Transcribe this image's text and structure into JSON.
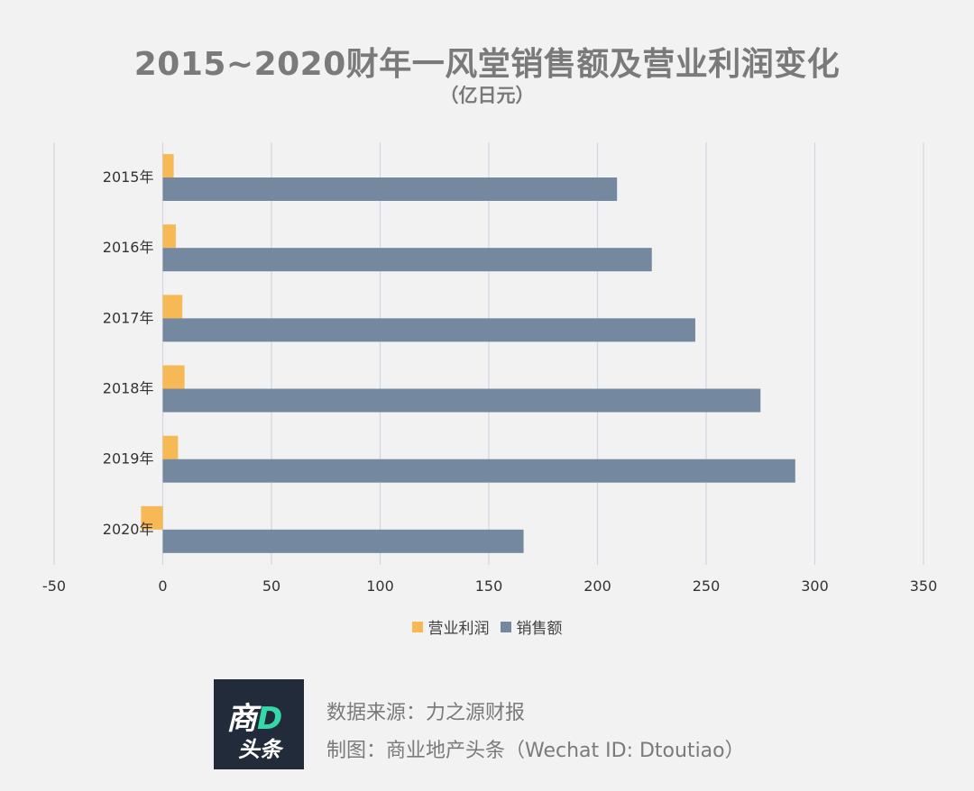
{
  "title": "2015~2020财年一风堂销售额及营业利润变化",
  "subtitle": "（亿日元）",
  "colors": {
    "profit": "#f7b955",
    "sales": "#74889f",
    "grid": "#d3d6e0",
    "axis_text": "#333333"
  },
  "chart_data": {
    "type": "bar",
    "orientation": "horizontal",
    "categories": [
      "2015年",
      "2016年",
      "2017年",
      "2018年",
      "2019年",
      "2020年"
    ],
    "series": [
      {
        "name": "营业利润",
        "values": [
          5,
          6,
          9,
          10,
          7,
          -10
        ]
      },
      {
        "name": "销售额",
        "values": [
          209,
          225,
          245,
          275,
          291,
          166
        ]
      }
    ],
    "xlim": [
      -50,
      350
    ],
    "xticks": [
      -50,
      0,
      50,
      100,
      150,
      200,
      250,
      300,
      350
    ],
    "xlabel": "",
    "ylabel": "",
    "grid": "vertical",
    "legend": "bottom"
  },
  "logo": {
    "line1_main": "商",
    "line1_accent": "D",
    "line2": "头条"
  },
  "credits": {
    "source": "数据来源：力之源财报",
    "maker": "制图：商业地产头条（Wechat ID: Dtoutiao）"
  }
}
